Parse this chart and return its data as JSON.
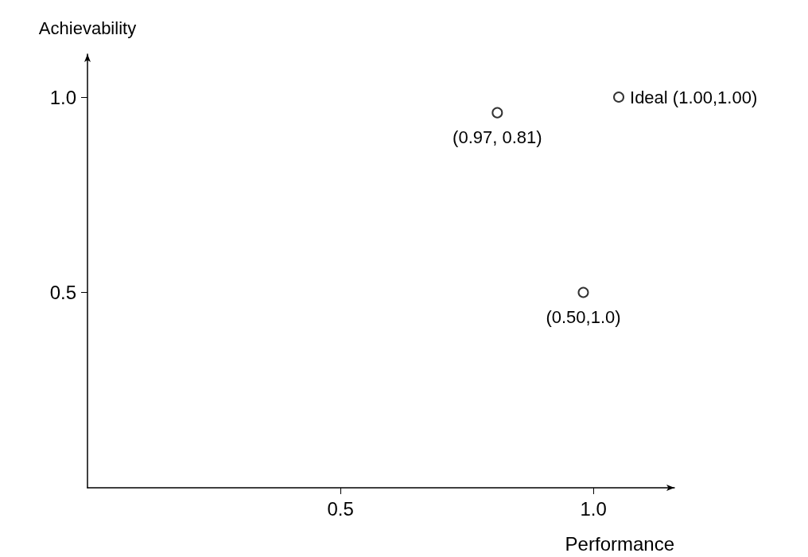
{
  "chart_data": {
    "type": "scatter",
    "xlabel": "Performance",
    "ylabel": "Achievability",
    "x": [
      0.81,
      0.98,
      1.05
    ],
    "values": [
      0.96,
      0.5,
      1.0
    ],
    "color": "#000000",
    "marker": "circle",
    "xlim": [
      0,
      1.16
    ],
    "ylim": [
      0,
      1.11
    ],
    "xticks": [
      0.5,
      {
        "value": 1,
        "label": "1.0"
      }
    ],
    "yticks": [
      0.5,
      {
        "value": 1,
        "label": "1.0"
      }
    ],
    "grid": false,
    "annotations": [
      {
        "text": "(0.97, 0.81)",
        "x": 0.81,
        "y": 0.96
      },
      {
        "text": "(0.50,1.0)",
        "x": 0.98,
        "y": 0.5
      },
      {
        "text": "Ideal (1.00,1.00)",
        "x": 1.05,
        "y": 1.0
      }
    ]
  }
}
